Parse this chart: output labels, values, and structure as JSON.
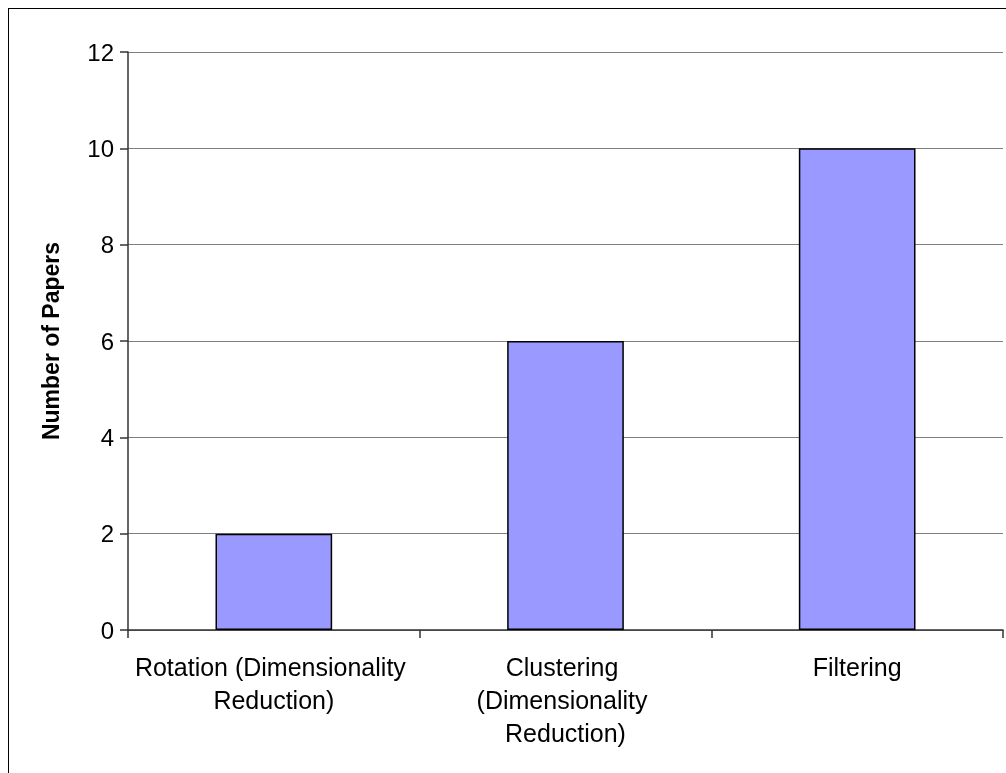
{
  "chart_data": {
    "type": "bar",
    "ylabel": "Number of Papers",
    "categories": [
      "Rotation (Dimensionality Reduction)",
      "Clustering (Dimensionality Reduction)",
      "Filtering"
    ],
    "values": [
      2,
      6,
      10
    ],
    "color": "#9999ff",
    "ylim": [
      0,
      12
    ],
    "yticks": [
      0,
      2,
      4,
      6,
      8,
      10,
      12
    ],
    "grid": "y"
  }
}
